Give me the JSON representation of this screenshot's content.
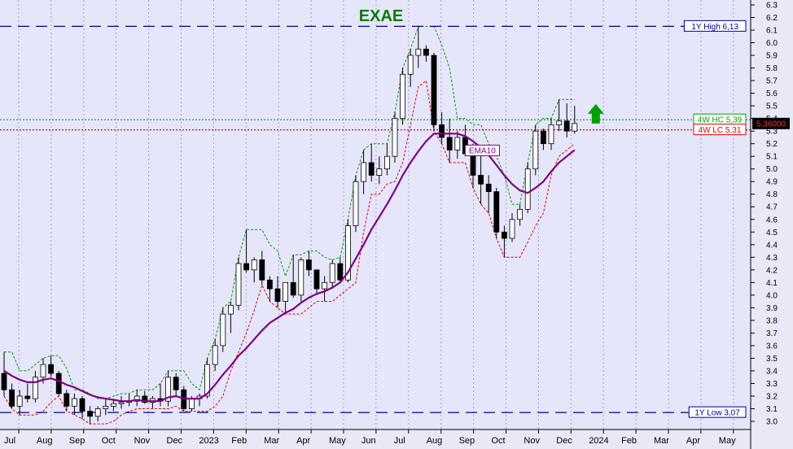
{
  "chart_data": {
    "type": "candlestick",
    "title": "EXAE",
    "colors": {
      "background": "#e6e6fa",
      "title": "#0a7a0a",
      "bull": "#ffffff",
      "bear": "#000000",
      "ema": "#800080",
      "high_line": "#00008b",
      "hc_line": "#00a000",
      "lc_line": "#e00000",
      "arrow": "#00a000",
      "grid": "#a0a0d0"
    },
    "y_axis": {
      "min": 3.0,
      "max": 6.3,
      "ticks": [
        "3.0",
        "3.1",
        "3.2",
        "3.3",
        "3.4",
        "3.5",
        "3.6",
        "3.7",
        "3.8",
        "3.9",
        "4.0",
        "4.1",
        "4.2",
        "4.3",
        "4.4",
        "4.5",
        "4.6",
        "4.7",
        "4.8",
        "4.9",
        "5.0",
        "5.1",
        "5.2",
        "5.3",
        "5.4",
        "5.5",
        "5.6",
        "5.7",
        "5.8",
        "5.9",
        "6.0",
        "6.1",
        "6.2",
        "6.3"
      ]
    },
    "x_axis": {
      "labels": [
        "Jul",
        "Aug",
        "Sep",
        "Oct",
        "Nov",
        "Dec",
        "2023",
        "Feb",
        "Mar",
        "Apr",
        "May",
        "Jun",
        "Jul",
        "Aug",
        "Sep",
        "Oct",
        "Nov",
        "Dec",
        "2024",
        "Feb",
        "Mar",
        "Apr",
        "May"
      ]
    },
    "reference_lines": [
      {
        "name": "1Y High 6,13",
        "value": 6.13
      },
      {
        "name": "1Y Low 3,07",
        "value": 3.07
      },
      {
        "name": "4W HC 5,39",
        "value": 5.39
      },
      {
        "name": "4W LC 5,31",
        "value": 5.31
      }
    ],
    "last_price_label": "5,36000",
    "last_price": 5.36,
    "ema_label": "EMA10",
    "candles": [
      [
        3.38,
        3.55,
        3.2,
        3.25
      ],
      [
        3.25,
        3.3,
        3.1,
        3.12
      ],
      [
        3.12,
        3.25,
        3.05,
        3.2
      ],
      [
        3.2,
        3.3,
        3.15,
        3.18
      ],
      [
        3.18,
        3.4,
        3.15,
        3.35
      ],
      [
        3.35,
        3.5,
        3.3,
        3.45
      ],
      [
        3.45,
        3.52,
        3.35,
        3.38
      ],
      [
        3.38,
        3.4,
        3.2,
        3.22
      ],
      [
        3.22,
        3.25,
        3.08,
        3.12
      ],
      [
        3.12,
        3.22,
        3.05,
        3.18
      ],
      [
        3.18,
        3.2,
        3.02,
        3.08
      ],
      [
        3.08,
        3.12,
        2.98,
        3.04
      ],
      [
        3.04,
        3.12,
        3.0,
        3.1
      ],
      [
        3.1,
        3.18,
        3.05,
        3.12
      ],
      [
        3.12,
        3.18,
        3.08,
        3.14
      ],
      [
        3.14,
        3.2,
        3.1,
        3.15
      ],
      [
        3.15,
        3.22,
        3.12,
        3.16
      ],
      [
        3.16,
        3.25,
        3.12,
        3.2
      ],
      [
        3.2,
        3.24,
        3.14,
        3.15
      ],
      [
        3.15,
        3.2,
        3.1,
        3.18
      ],
      [
        3.18,
        3.3,
        3.12,
        3.16
      ],
      [
        3.16,
        3.4,
        3.12,
        3.35
      ],
      [
        3.35,
        3.38,
        3.2,
        3.25
      ],
      [
        3.25,
        3.28,
        3.08,
        3.1
      ],
      [
        3.1,
        3.2,
        3.08,
        3.18
      ],
      [
        3.18,
        3.22,
        3.12,
        3.2
      ],
      [
        3.2,
        3.5,
        3.18,
        3.45
      ],
      [
        3.45,
        3.65,
        3.4,
        3.6
      ],
      [
        3.6,
        3.9,
        3.55,
        3.85
      ],
      [
        3.85,
        3.95,
        3.7,
        3.92
      ],
      [
        3.92,
        4.3,
        3.88,
        4.25
      ],
      [
        4.25,
        4.52,
        4.18,
        4.2
      ],
      [
        4.2,
        4.3,
        4.1,
        4.28
      ],
      [
        4.28,
        4.35,
        4.08,
        4.12
      ],
      [
        4.12,
        4.15,
        3.95,
        4.05
      ],
      [
        4.05,
        4.15,
        3.9,
        3.95
      ],
      [
        3.95,
        4.1,
        3.85,
        4.1
      ],
      [
        4.1,
        4.32,
        3.98,
        4.0
      ],
      [
        4.0,
        4.3,
        3.95,
        4.28
      ],
      [
        4.28,
        4.35,
        4.15,
        4.2
      ],
      [
        4.2,
        4.2,
        4.0,
        4.05
      ],
      [
        4.05,
        4.15,
        3.95,
        4.1
      ],
      [
        4.1,
        4.28,
        4.05,
        4.25
      ],
      [
        4.25,
        4.3,
        4.1,
        4.12
      ],
      [
        4.12,
        4.6,
        4.1,
        4.55
      ],
      [
        4.55,
        4.95,
        4.5,
        4.9
      ],
      [
        4.9,
        5.15,
        4.8,
        5.05
      ],
      [
        5.05,
        5.2,
        4.9,
        4.95
      ],
      [
        4.95,
        5.1,
        4.88,
        5.0
      ],
      [
        5.0,
        5.2,
        4.95,
        5.1
      ],
      [
        5.1,
        5.45,
        5.05,
        5.4
      ],
      [
        5.4,
        5.8,
        5.35,
        5.75
      ],
      [
        5.75,
        5.95,
        5.65,
        5.9
      ],
      [
        5.9,
        6.13,
        5.8,
        5.95
      ],
      [
        5.95,
        5.98,
        5.85,
        5.9
      ],
      [
        5.9,
        5.92,
        5.3,
        5.35
      ],
      [
        5.35,
        5.45,
        5.2,
        5.25
      ],
      [
        5.25,
        5.4,
        5.05,
        5.15
      ],
      [
        5.15,
        5.3,
        5.08,
        5.25
      ],
      [
        5.25,
        5.35,
        5.1,
        5.12
      ],
      [
        5.12,
        5.2,
        4.85,
        4.95
      ],
      [
        4.95,
        5.15,
        4.72,
        4.88
      ],
      [
        4.88,
        4.95,
        4.65,
        4.82
      ],
      [
        4.82,
        4.85,
        4.45,
        4.5
      ],
      [
        4.5,
        4.55,
        4.3,
        4.45
      ],
      [
        4.45,
        4.65,
        4.42,
        4.6
      ],
      [
        4.6,
        4.72,
        4.55,
        4.68
      ],
      [
        4.68,
        5.05,
        4.65,
        5.0
      ],
      [
        5.0,
        5.35,
        4.95,
        5.3
      ],
      [
        5.3,
        5.32,
        5.15,
        5.2
      ],
      [
        5.2,
        5.4,
        5.15,
        5.35
      ],
      [
        5.35,
        5.55,
        5.3,
        5.38
      ],
      [
        5.38,
        5.52,
        5.25,
        5.3
      ],
      [
        5.3,
        5.5,
        5.28,
        5.36
      ]
    ],
    "ema": [
      3.4,
      3.36,
      3.33,
      3.31,
      3.31,
      3.33,
      3.34,
      3.32,
      3.29,
      3.27,
      3.24,
      3.21,
      3.19,
      3.18,
      3.17,
      3.16,
      3.16,
      3.17,
      3.16,
      3.16,
      3.16,
      3.19,
      3.2,
      3.18,
      3.18,
      3.18,
      3.22,
      3.29,
      3.37,
      3.44,
      3.52,
      3.58,
      3.65,
      3.72,
      3.78,
      3.82,
      3.86,
      3.89,
      3.94,
      3.98,
      4.01,
      4.03,
      4.06,
      4.1,
      4.18,
      4.29,
      4.4,
      4.52,
      4.62,
      4.72,
      4.83,
      4.95,
      5.05,
      5.14,
      5.22,
      5.28,
      5.28,
      5.28,
      5.28,
      5.26,
      5.22,
      5.17,
      5.11,
      5.03,
      4.95,
      4.88,
      4.83,
      4.81,
      4.85,
      4.9,
      4.98,
      5.05,
      5.1,
      5.15
    ],
    "upper_band": [
      3.55,
      3.55,
      3.4,
      3.4,
      3.45,
      3.5,
      3.52,
      3.52,
      3.42,
      3.25,
      3.25,
      3.22,
      3.18,
      3.18,
      3.2,
      3.22,
      3.22,
      3.25,
      3.25,
      3.25,
      3.3,
      3.4,
      3.4,
      3.4,
      3.3,
      3.25,
      3.5,
      3.65,
      3.9,
      3.95,
      4.3,
      4.52,
      4.52,
      4.52,
      4.4,
      4.35,
      4.15,
      4.32,
      4.32,
      4.35,
      4.35,
      4.3,
      4.28,
      4.3,
      4.6,
      4.95,
      5.15,
      5.2,
      5.2,
      5.2,
      5.45,
      5.8,
      5.95,
      6.13,
      6.13,
      6.13,
      5.98,
      5.8,
      5.4,
      5.4,
      5.35,
      5.35,
      5.2,
      5.1,
      4.95,
      4.72,
      4.72,
      5.05,
      5.35,
      5.4,
      5.4,
      5.55,
      5.55,
      5.55
    ],
    "lower_band": [
      3.2,
      3.1,
      3.05,
      3.05,
      3.05,
      3.08,
      3.15,
      3.2,
      3.08,
      3.05,
      3.02,
      2.98,
      2.98,
      2.98,
      3.0,
      3.05,
      3.08,
      3.1,
      3.1,
      3.1,
      3.1,
      3.1,
      3.12,
      3.08,
      3.08,
      3.08,
      3.08,
      3.12,
      3.2,
      3.4,
      3.55,
      3.7,
      3.88,
      4.08,
      3.95,
      3.9,
      3.85,
      3.85,
      3.85,
      3.9,
      3.95,
      3.95,
      3.95,
      4.0,
      4.05,
      4.1,
      4.5,
      4.8,
      4.8,
      4.88,
      4.9,
      5.05,
      5.35,
      5.65,
      5.7,
      5.3,
      5.2,
      5.05,
      5.05,
      5.05,
      4.85,
      4.72,
      4.65,
      4.45,
      4.3,
      4.3,
      4.3,
      4.42,
      4.55,
      4.65,
      4.95,
      5.1,
      5.15,
      5.2
    ]
  }
}
